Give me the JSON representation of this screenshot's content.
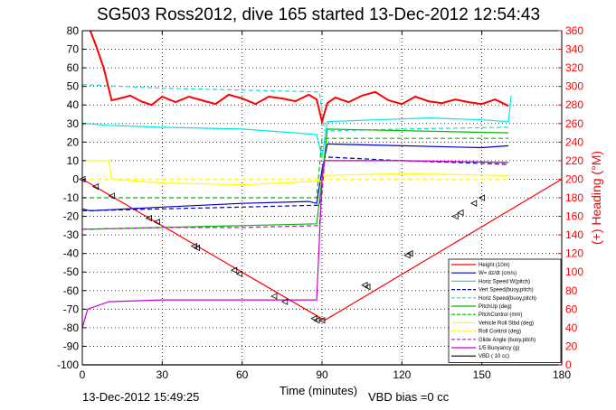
{
  "chart_data": {
    "type": "line",
    "title": "SG503 Ross2012, dive 165 started 13-Dec-2012 12:54:43",
    "xlabel": "Time (minutes)",
    "ylabel_right": "(+) Heading (°M)",
    "xlim": [
      0,
      180
    ],
    "ylim_left": [
      -100,
      80
    ],
    "ylim_right": [
      0,
      360
    ],
    "xticks": [
      "0",
      "30",
      "60",
      "90",
      "120",
      "150",
      "180"
    ],
    "yticks_left": [
      "80",
      "70",
      "60",
      "50",
      "40",
      "30",
      "20",
      "10",
      "0",
      "-10",
      "-20",
      "-30",
      "-40",
      "-50",
      "-60",
      "-70",
      "-80",
      "-90",
      "-100"
    ],
    "yticks_right": [
      "360",
      "340",
      "320",
      "300",
      "280",
      "260",
      "240",
      "220",
      "200",
      "180",
      "160",
      "140",
      "120",
      "100",
      "80",
      "60",
      "40",
      "20",
      "0"
    ],
    "grid": true,
    "legend_position": "bottom-right",
    "footer_left": "13-Dec-2012 15:49:25",
    "footer_right": "VBD bias =0 cc",
    "series": [
      {
        "name": "Height (10m)",
        "color": "#ff0000",
        "style": "solid",
        "x": [
          0,
          91,
          180
        ],
        "y": [
          0,
          -76,
          0
        ]
      },
      {
        "name": "W= dz/dt (cm/s)",
        "color": "#0000c8",
        "style": "solid",
        "x": [
          0,
          3,
          30,
          60,
          85,
          88,
          90,
          92,
          120,
          150,
          160
        ],
        "y": [
          -16,
          -17,
          -15,
          -13,
          -12,
          -13,
          5,
          19,
          18,
          17,
          18
        ]
      },
      {
        "name": "Horiz Speed W(pitch)",
        "color": "#00e8e8",
        "style": "solid",
        "x": [
          0,
          1,
          10,
          30,
          60,
          80,
          88,
          90,
          92,
          110,
          130,
          150,
          160,
          161
        ],
        "y": [
          29,
          30,
          29,
          28,
          27,
          25,
          24,
          12,
          31,
          32,
          33,
          32,
          31,
          45
        ]
      },
      {
        "name": "Vert Speed(buoy,pitch)",
        "color": "#0000c8",
        "style": "dashed",
        "x": [
          0,
          30,
          60,
          89,
          91,
          120,
          160
        ],
        "y": [
          -17,
          -16,
          -15,
          -14,
          12,
          10,
          8
        ]
      },
      {
        "name": "Horiz Speed(buoy,pitch)",
        "color": "#00e8e8",
        "style": "dashed",
        "x": [
          0,
          30,
          60,
          89,
          91,
          120,
          160
        ],
        "y": [
          51,
          49,
          48,
          47,
          26,
          27,
          28
        ]
      },
      {
        "name": "PitchUp (deg)",
        "color": "#00bb00",
        "style": "solid",
        "x": [
          0,
          1,
          30,
          60,
          88,
          90,
          92,
          160
        ],
        "y": [
          -27,
          -27,
          -26,
          -25,
          -24,
          0,
          27,
          25
        ]
      },
      {
        "name": "PitchControl (mm)",
        "color": "#00bb00",
        "style": "dashed",
        "x": [
          0,
          88,
          90,
          160
        ],
        "y": [
          -10,
          -10,
          22,
          22
        ]
      },
      {
        "name": "Vehicle Roll Stbd (deg)",
        "color": "#ffff00",
        "style": "solid",
        "x": [
          0,
          10,
          11,
          30,
          60,
          90,
          91,
          120,
          160
        ],
        "y": [
          10,
          10,
          0,
          -2,
          -3,
          -1,
          2,
          3,
          2
        ]
      },
      {
        "name": "Roll Control (deg)",
        "color": "#ffff00",
        "style": "dashed",
        "x": [
          0,
          160
        ],
        "y": [
          0,
          0
        ]
      },
      {
        "name": "Glide Angle (buoy,pitch)",
        "color": "#dd00dd",
        "style": "dashed",
        "x": [
          0,
          30,
          60,
          89,
          91,
          120,
          160
        ],
        "y": [
          -27,
          -26,
          -26,
          -25,
          10,
          10,
          9
        ]
      },
      {
        "name": "1/5 Buoyancy (g)",
        "color": "#cc00cc",
        "style": "solid",
        "x": [
          0,
          2,
          10,
          30,
          60,
          87,
          88,
          90,
          91,
          120,
          160
        ],
        "y": [
          -80,
          -70,
          -66,
          -65,
          -65,
          -65,
          -65,
          0,
          10,
          10,
          9
        ]
      },
      {
        "name": "VBD ( 10 cc)",
        "color": "#000000",
        "style": "solid",
        "x": [
          0,
          180
        ],
        "y": [
          -100,
          -100
        ]
      },
      {
        "name": "Heading",
        "axis": "right",
        "color": "#ff0000",
        "style": "solid",
        "x": [
          3,
          5,
          8,
          11,
          14,
          18,
          22,
          26,
          30,
          35,
          40,
          45,
          50,
          55,
          60,
          65,
          70,
          75,
          80,
          85,
          88,
          90,
          92,
          95,
          100,
          105,
          110,
          115,
          120,
          125,
          130,
          135,
          140,
          145,
          150,
          155,
          160
        ],
        "y": [
          360,
          345,
          320,
          285,
          287,
          290,
          284,
          280,
          289,
          283,
          289,
          285,
          281,
          291,
          287,
          281,
          289,
          287,
          284,
          291,
          286,
          262,
          282,
          288,
          283,
          290,
          294,
          285,
          281,
          289,
          284,
          282,
          286,
          283,
          281,
          286,
          279
        ]
      }
    ],
    "markers": {
      "description": "",
      "x": [
        0,
        5,
        11,
        25,
        28,
        42,
        43,
        57,
        59,
        72,
        76,
        87,
        88,
        90,
        106,
        107,
        122,
        123,
        140,
        142,
        147,
        150
      ],
      "y": [
        0,
        -4,
        -9,
        -21,
        -23,
        -36,
        -37,
        -49,
        -51,
        -63,
        -66,
        -75,
        -76,
        -76,
        -57,
        -58,
        -41,
        -40,
        -20,
        -18,
        -13,
        -10
      ]
    }
  }
}
